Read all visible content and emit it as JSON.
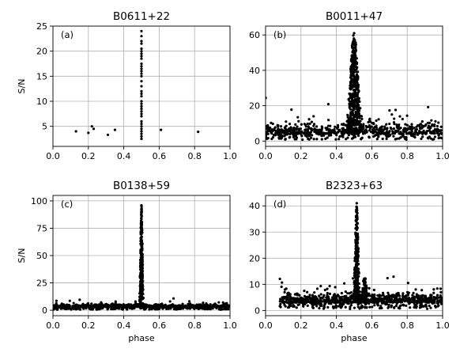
{
  "chart_data": [
    {
      "panel_label": "(a)",
      "type": "scatter",
      "title": "B0611+22",
      "xlabel": "",
      "ylabel": "S/N",
      "xlim": [
        0.0,
        1.0
      ],
      "ylim": [
        1.0,
        25.0
      ],
      "xticks": [
        "0.0",
        "0.2",
        "0.4",
        "0.6",
        "0.8",
        "1.0"
      ],
      "yticks": [
        "5",
        "10",
        "15",
        "20",
        "25"
      ],
      "xtick_values": [
        0,
        0.2,
        0.4,
        0.6,
        0.8,
        1.0
      ],
      "ytick_values": [
        5,
        10,
        15,
        20,
        25
      ],
      "grid": true,
      "marker_color": "#000000",
      "x": [
        0.13,
        0.2,
        0.22,
        0.23,
        0.31,
        0.35,
        0.61,
        0.82,
        0.5,
        0.5,
        0.5,
        0.5,
        0.5,
        0.5,
        0.5,
        0.5,
        0.5,
        0.5,
        0.5,
        0.5,
        0.5,
        0.5,
        0.5,
        0.5,
        0.5,
        0.5,
        0.5,
        0.5,
        0.5,
        0.5,
        0.5,
        0.5,
        0.5,
        0.5,
        0.5,
        0.5,
        0.5,
        0.5,
        0.5,
        0.5,
        0.5,
        0.5,
        0.5
      ],
      "y": [
        4.0,
        3.7,
        5.0,
        4.5,
        3.3,
        4.3,
        4.3,
        3.9,
        2.5,
        3.0,
        3.5,
        4.0,
        4.5,
        5.0,
        5.5,
        6.0,
        7.0,
        7.5,
        8.0,
        8.5,
        9.0,
        9.5,
        10.0,
        11.0,
        11.5,
        12.0,
        13.0,
        14.0,
        15.0,
        15.5,
        16.0,
        16.5,
        17.0,
        17.5,
        18.5,
        19.0,
        19.5,
        20.0,
        20.5,
        21.5,
        22.0,
        23.0,
        24.0
      ]
    },
    {
      "panel_label": "(b)",
      "type": "scatter",
      "title": "B0011+47",
      "xlabel": "",
      "ylabel": "",
      "xlim": [
        0.0,
        1.0
      ],
      "ylim": [
        -3.0,
        65.0
      ],
      "xticks": [
        "0.0",
        "0.2",
        "0.4",
        "0.6",
        "0.8",
        "1.0"
      ],
      "yticks": [
        "0",
        "20",
        "40",
        "60"
      ],
      "xtick_values": [
        0,
        0.2,
        0.4,
        0.6,
        0.8,
        1.0
      ],
      "ytick_values": [
        0,
        20,
        40,
        60
      ],
      "grid": true,
      "marker_color": "#000000",
      "pulse": {
        "center": 0.5,
        "width": 0.03,
        "peak": 61,
        "background": 4,
        "noise": 3.0,
        "n_background": 700,
        "n_pulse": 450
      }
    },
    {
      "panel_label": "(c)",
      "type": "scatter",
      "title": "B0138+59",
      "xlabel": "phase",
      "ylabel": "S/N",
      "xlim": [
        0.0,
        1.0
      ],
      "ylim": [
        -5.0,
        105.0
      ],
      "xticks": [
        "0.0",
        "0.2",
        "0.4",
        "0.6",
        "0.8",
        "1.0"
      ],
      "yticks": [
        "0",
        "25",
        "50",
        "75",
        "100"
      ],
      "xtick_values": [
        0,
        0.2,
        0.4,
        0.6,
        0.8,
        1.0
      ],
      "ytick_values": [
        0,
        25,
        50,
        75,
        100
      ],
      "grid": true,
      "marker_color": "#000000",
      "pulse": {
        "center": 0.5,
        "width": 0.008,
        "peak": 96,
        "background": 3,
        "noise": 1.1,
        "n_background": 900,
        "n_pulse": 320
      }
    },
    {
      "panel_label": "(d)",
      "type": "scatter",
      "title": "B2323+63",
      "xlabel": "phase",
      "ylabel": "",
      "xlim": [
        0.0,
        1.0
      ],
      "ylim": [
        -2.0,
        44.0
      ],
      "xticks": [
        "0.0",
        "0.2",
        "0.4",
        "0.6",
        "0.8",
        "1.0"
      ],
      "yticks": [
        "0",
        "10",
        "20",
        "30",
        "40"
      ],
      "xtick_values": [
        0,
        0.2,
        0.4,
        0.6,
        0.8,
        1.0
      ],
      "ytick_values": [
        0,
        10,
        20,
        30,
        40
      ],
      "grid": true,
      "marker_color": "#000000",
      "pulse": {
        "center": 0.515,
        "width": 0.012,
        "peak": 41,
        "background": 3,
        "noise": 1.6,
        "n_background": 900,
        "n_pulse": 280,
        "secondary": {
          "center": 0.56,
          "width": 0.015,
          "peak": 13
        },
        "xmin_data": 0.08
      }
    }
  ]
}
